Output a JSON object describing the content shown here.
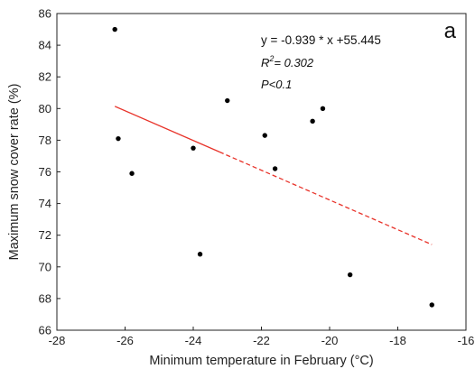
{
  "chart_data": {
    "type": "scatter",
    "panel_label": "a",
    "xlabel": "Minimum temperature in February (°C)",
    "ylabel": "Maximum snow cover rate (%)",
    "xlim": [
      -28,
      -16
    ],
    "ylim": [
      66,
      86
    ],
    "x_ticks": [
      -28,
      -26,
      -24,
      -22,
      -20,
      -18,
      -16
    ],
    "y_ticks": [
      66,
      68,
      70,
      72,
      74,
      76,
      78,
      80,
      82,
      84,
      86
    ],
    "grid": false,
    "legend": "none",
    "points": [
      {
        "x": -26.3,
        "y": 85.0
      },
      {
        "x": -26.2,
        "y": 78.1
      },
      {
        "x": -25.8,
        "y": 75.9
      },
      {
        "x": -24.0,
        "y": 77.5
      },
      {
        "x": -23.8,
        "y": 70.8
      },
      {
        "x": -23.0,
        "y": 80.5
      },
      {
        "x": -21.9,
        "y": 78.3
      },
      {
        "x": -21.6,
        "y": 76.2
      },
      {
        "x": -20.5,
        "y": 79.2
      },
      {
        "x": -20.2,
        "y": 80.0
      },
      {
        "x": -19.4,
        "y": 69.5
      },
      {
        "x": -17.0,
        "y": 67.6
      }
    ],
    "trend_line": {
      "slope": -0.939,
      "intercept": 55.445,
      "x_range": [
        -26.3,
        -17.0
      ],
      "color": "#e8332a",
      "style": "solid then dashed"
    },
    "point_color": "#000000",
    "annotations": {
      "equation": "y = -0.939 * x +55.445",
      "r2_prefix": "R",
      "r2_sup": "2",
      "r2_value": "= 0.302",
      "p_value": "P<0.1"
    }
  }
}
